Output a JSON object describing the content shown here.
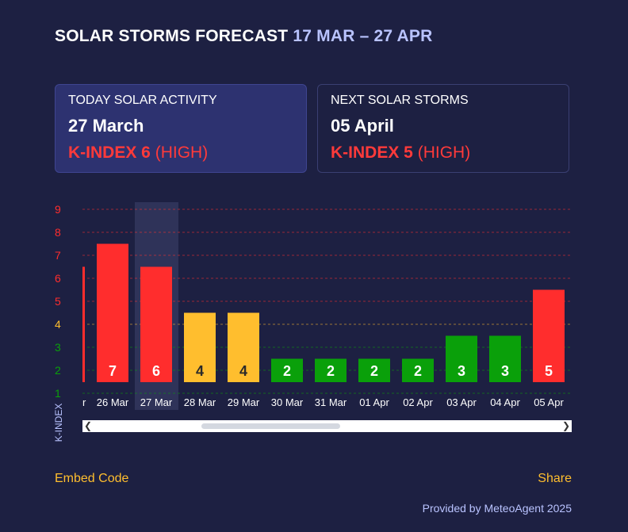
{
  "header": {
    "title": "SOLAR STORMS FORECAST",
    "range": "17 MAR – 27 APR"
  },
  "today": {
    "label": "TODAY SOLAR ACTIVITY",
    "date": "27 March",
    "k_label": "K-INDEX 6",
    "level": "(HIGH)"
  },
  "next": {
    "label": "NEXT SOLAR STORMS",
    "date": "05 April",
    "k_label": "K-INDEX 5",
    "level": "(HIGH)"
  },
  "colors": {
    "high": "#ff2d2d",
    "medium": "#ffbe2e",
    "low": "#0aa00a",
    "accent": "#b9c3ff",
    "link": "#ffbe2e"
  },
  "chart_data": {
    "type": "bar",
    "ylabel": "K-INDEX",
    "ylim": [
      0.5,
      9.5
    ],
    "yticks": [
      1,
      2,
      3,
      4,
      5,
      6,
      7,
      8,
      9
    ],
    "partial_category": "r",
    "partial_value": 6.5,
    "categories": [
      "26 Mar",
      "27 Mar",
      "28 Mar",
      "29 Mar",
      "30 Mar",
      "31 Mar",
      "01 Apr",
      "02 Apr",
      "03 Apr",
      "04 Apr",
      "05 Apr"
    ],
    "values": [
      7.5,
      6.5,
      4.5,
      4.5,
      2.5,
      2.5,
      2.5,
      2.5,
      3.5,
      3.5,
      5.5
    ],
    "labels": [
      "7",
      "6",
      "4",
      "4",
      "2",
      "2",
      "2",
      "2",
      "3",
      "3",
      "5"
    ],
    "levels": [
      "high",
      "high",
      "medium",
      "medium",
      "low",
      "low",
      "low",
      "low",
      "low",
      "low",
      "high"
    ],
    "highlighted": "27 Mar",
    "grid": true,
    "scrollable": true
  },
  "footer": {
    "embed_label": "Embed Code",
    "share_label": "Share",
    "provided": "Provided by MeteoAgent 2025"
  }
}
